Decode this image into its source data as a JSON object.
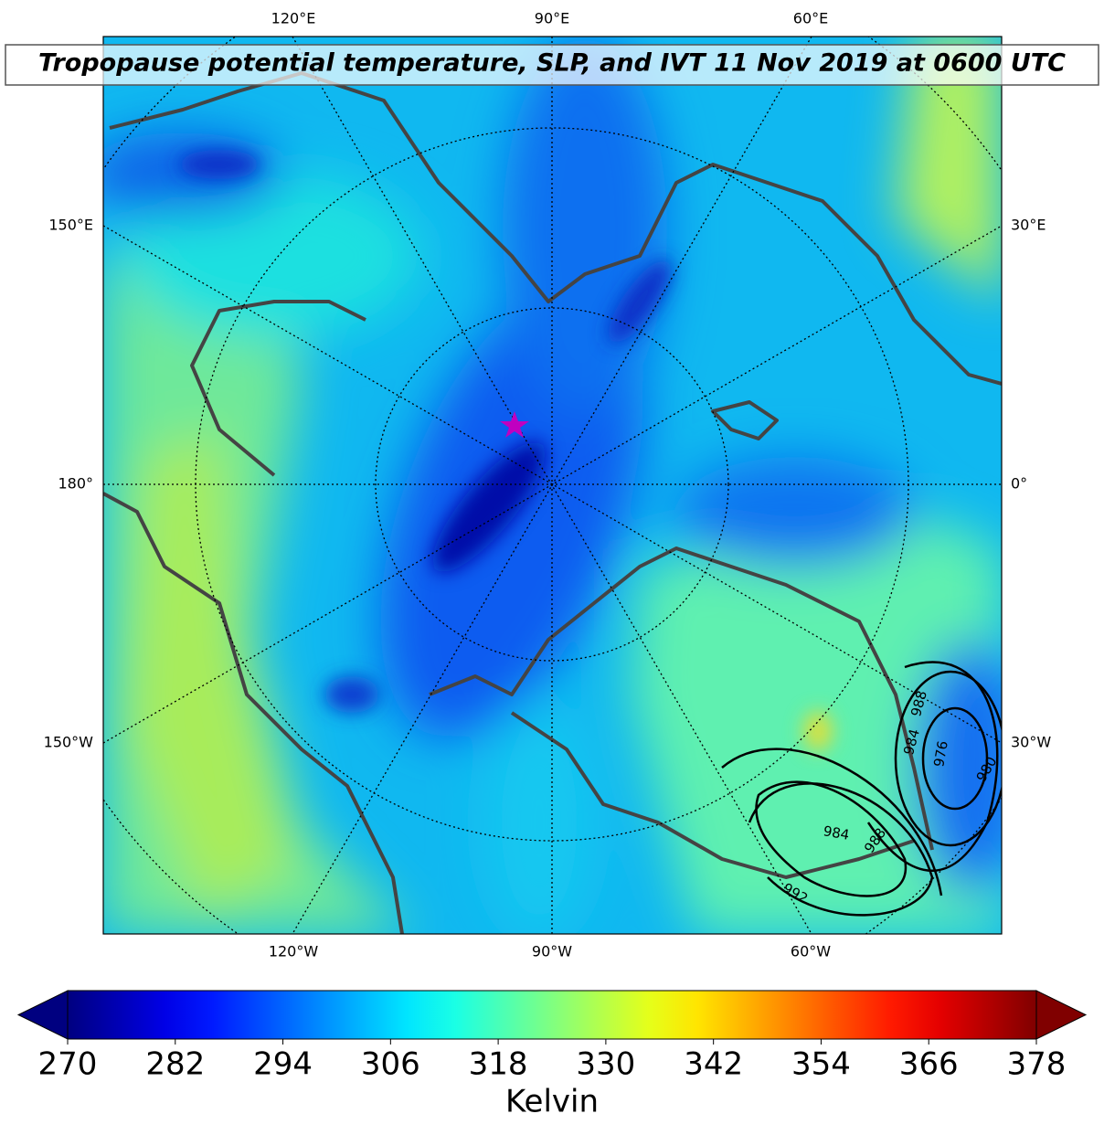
{
  "title": "Tropopause potential temperature, SLP, and IVT 11 Nov 2019 at 0600 UTC",
  "map": {
    "top_labels": [
      "120°E",
      "90°E",
      "60°E"
    ],
    "bottom_labels": [
      "120°W",
      "90°W",
      "60°W"
    ],
    "left_labels": [
      "150°E",
      "180°",
      "150°W"
    ],
    "right_labels": [
      "30°E",
      "0°",
      "30°W"
    ],
    "slp_contour_labels": [
      988,
      984,
      976,
      980,
      984,
      988,
      992
    ]
  },
  "colorbar": {
    "range": [
      270,
      378
    ],
    "ticks": [
      270,
      282,
      294,
      306,
      318,
      330,
      342,
      354,
      366,
      378
    ],
    "label": "Kelvin"
  }
}
